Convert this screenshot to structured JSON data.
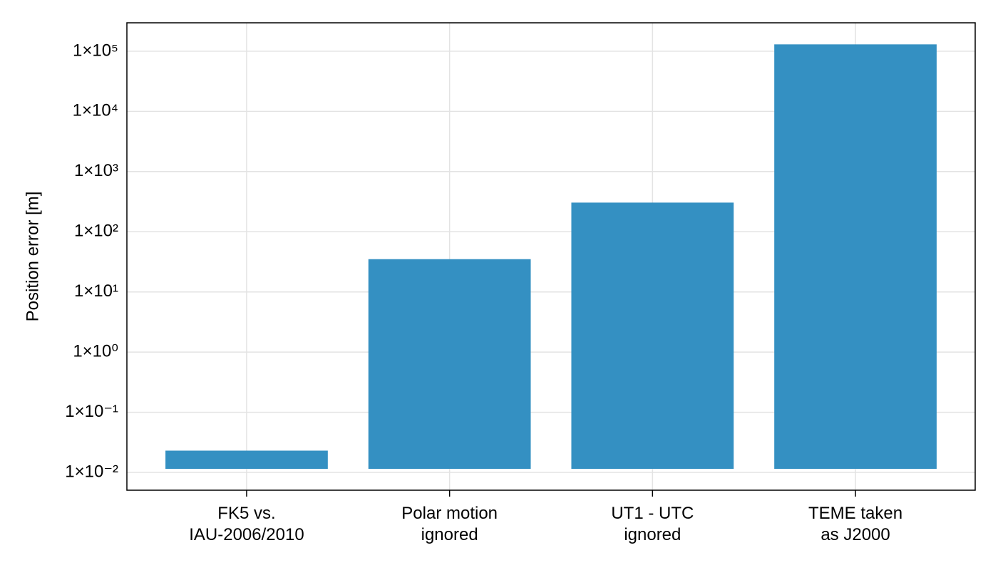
{
  "chart_data": {
    "type": "bar",
    "y_label": "Position error [m]",
    "categories": [
      "FK5 vs.\nIAU-2006/2010",
      "Polar motion\nignored",
      "UT1 - UTC\nignored",
      "TEME taken\nas J2000"
    ],
    "values": [
      0.023,
      35,
      305,
      130000
    ],
    "color": "#3490c2",
    "log_scale": true,
    "ylim": [
      0.00506,
      297000
    ],
    "yticks": [
      {
        "value": 0.01,
        "label": "1×10⁻²"
      },
      {
        "value": 0.1,
        "label": "1×10⁻¹"
      },
      {
        "value": 1,
        "label": "1×10⁰"
      },
      {
        "value": 10,
        "label": "1×10¹"
      },
      {
        "value": 100,
        "label": "1×10²"
      },
      {
        "value": 1000,
        "label": "1×10³"
      },
      {
        "value": 10000,
        "label": "1×10⁴"
      },
      {
        "value": 100000,
        "label": "1×10⁵"
      }
    ],
    "grid": true
  }
}
